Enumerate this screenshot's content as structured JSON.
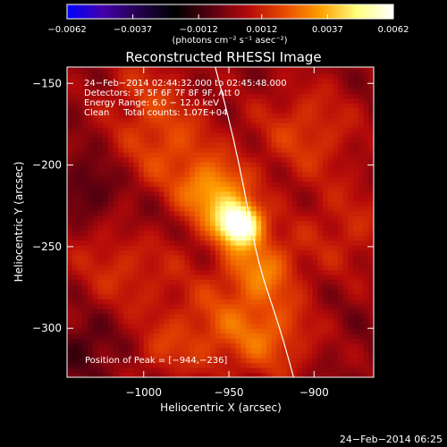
{
  "chart_data": {
    "type": "heatmap",
    "title": "Reconstructed RHESSI Image",
    "xlabel": "Heliocentric X (arcsec)",
    "ylabel": "Heliocentric Y (arcsec)",
    "xlim": [
      -1045,
      -865
    ],
    "ylim": [
      -330,
      -140
    ],
    "x_ticks": [
      -1000,
      -950,
      -900
    ],
    "y_ticks": [
      -150,
      -200,
      -250,
      -300
    ],
    "x_tick_labels": [
      "−1000",
      "−950",
      "−900"
    ],
    "y_tick_labels": [
      "−150",
      "−200",
      "−250",
      "−300"
    ],
    "colorbar": {
      "min": -0.0062,
      "max": 0.0062,
      "tick_values": [
        -0.0062,
        -0.0037,
        -0.0012,
        0.0012,
        0.0037,
        0.0062
      ],
      "tick_labels": [
        "−0.0062",
        "−0.0037",
        "−0.0012",
        "0.0012",
        "0.0037",
        "0.0062"
      ],
      "unit_label": "(photons cm⁻² s⁻¹ asec⁻²)",
      "colors": [
        "#0000ff",
        "#4400aa",
        "#22004a",
        "#000000",
        "#5a0010",
        "#b40a0a",
        "#e84a00",
        "#ffa000",
        "#ffff80",
        "#ffffff"
      ]
    },
    "annotations": [
      "24−Feb−2014 02:44:32.000 to 02:45:48.000",
      "Detectors: 3F 5F 6F 7F 8F 9F, Att 0",
      "Energy Range: 6.0 − 12.0 keV",
      "Clean     Total counts: 1.07E+04"
    ],
    "peak_label": "Position of Peak = [−944,−236]",
    "peak": {
      "x": -944,
      "y": -236,
      "value": 0.0062
    },
    "sources": [
      {
        "x": -944,
        "y": -236,
        "sigma": 9,
        "amp": 0.0062
      },
      {
        "x": -958,
        "y": -218,
        "sigma": 14,
        "amp": 0.0034
      },
      {
        "x": -932,
        "y": -262,
        "sigma": 16,
        "amp": 0.0026
      },
      {
        "x": -985,
        "y": -190,
        "sigma": 20,
        "amp": 0.0018
      },
      {
        "x": -905,
        "y": -180,
        "sigma": 22,
        "amp": 0.0016
      },
      {
        "x": -925,
        "y": -305,
        "sigma": 18,
        "amp": 0.002
      },
      {
        "x": -1010,
        "y": -260,
        "sigma": 24,
        "amp": 0.0014
      },
      {
        "x": -880,
        "y": -240,
        "sigma": 20,
        "amp": 0.0012
      },
      {
        "x": -960,
        "y": -300,
        "sigma": 20,
        "amp": 0.0016
      },
      {
        "x": -1000,
        "y": -155,
        "sigma": 18,
        "amp": 0.0012
      },
      {
        "x": -1030,
        "y": -215,
        "sigma": 12,
        "amp": -0.0012
      },
      {
        "x": -1035,
        "y": -310,
        "sigma": 14,
        "amp": -0.001
      },
      {
        "x": -990,
        "y": -315,
        "sigma": 12,
        "amp": 0.001
      },
      {
        "x": -1000,
        "y": -235,
        "sigma": 12,
        "amp": -0.0008
      }
    ],
    "limb_curve": [
      {
        "x": -958,
        "y": -140
      },
      {
        "x": -948,
        "y": -180
      },
      {
        "x": -940,
        "y": -220
      },
      {
        "x": -933,
        "y": -260
      },
      {
        "x": -920,
        "y": -300
      },
      {
        "x": -912,
        "y": -330
      }
    ]
  },
  "footer_timestamp": "24−Feb−2014 06:25"
}
